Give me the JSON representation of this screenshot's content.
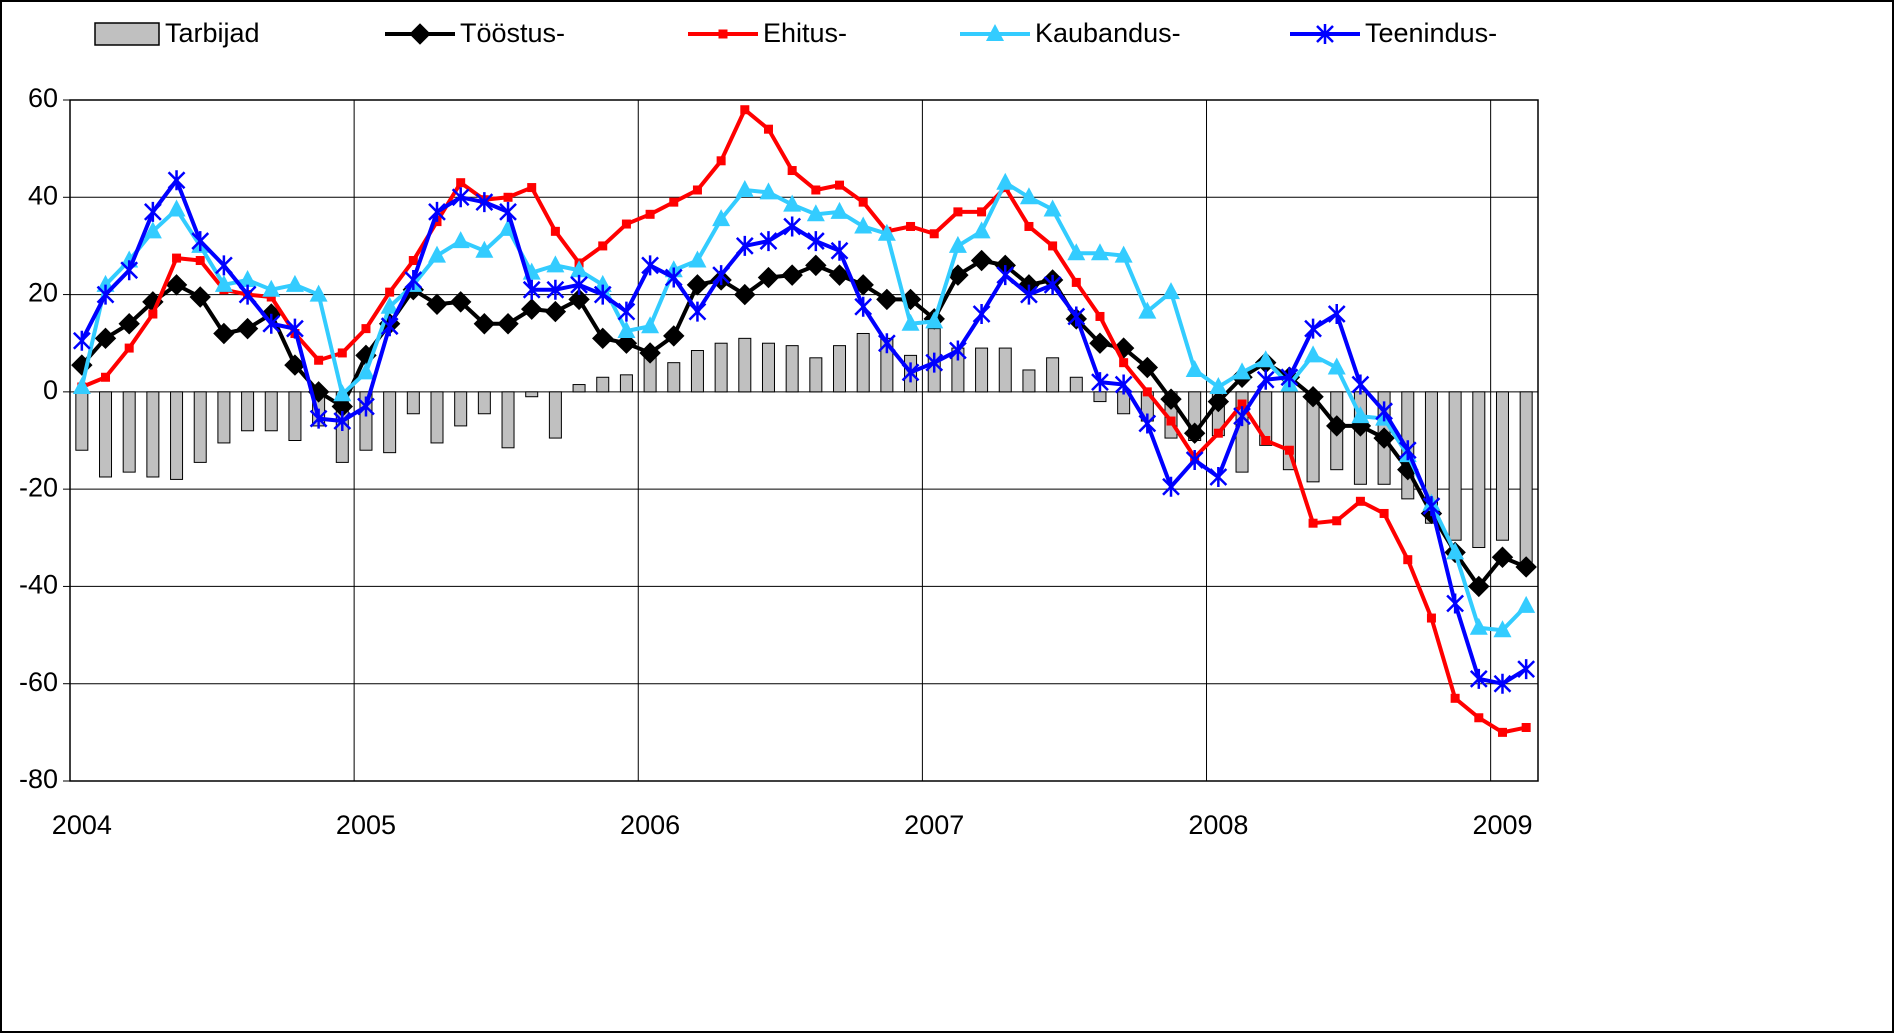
{
  "chart_data": {
    "type": "combo",
    "categories": [
      "2004",
      null,
      null,
      null,
      null,
      null,
      null,
      null,
      null,
      null,
      null,
      null,
      "2005",
      null,
      null,
      null,
      null,
      null,
      null,
      null,
      null,
      null,
      null,
      null,
      "2006",
      null,
      null,
      null,
      null,
      null,
      null,
      null,
      null,
      null,
      null,
      null,
      "2007",
      null,
      null,
      null,
      null,
      null,
      null,
      null,
      null,
      null,
      null,
      null,
      "2008",
      null,
      null,
      null,
      null,
      null,
      null,
      null,
      null,
      null,
      null,
      null,
      "2009",
      null
    ],
    "ylim": [
      -80,
      60
    ],
    "yticks": [
      -80,
      -60,
      -40,
      -20,
      0,
      20,
      40,
      60
    ],
    "grid": true,
    "series": [
      {
        "name": "Tarbijad",
        "type": "bar",
        "color": "#c0c0c0",
        "values": [
          -12,
          -17.5,
          -16.5,
          -17.5,
          -18,
          -14.5,
          -10.5,
          -8,
          -8,
          -10,
          -7,
          -14.5,
          -12,
          -12.5,
          -4.5,
          -10.5,
          -7,
          -4.5,
          -11.5,
          -1,
          -9.5,
          1.5,
          3,
          3.5,
          8,
          6,
          8.5,
          10,
          11,
          10,
          9.5,
          7,
          9.5,
          12,
          11,
          7.5,
          13,
          9,
          9,
          9,
          4.5,
          7,
          3,
          -2,
          -4.5,
          -6,
          -9.5,
          -10,
          -9,
          -16.5,
          -11,
          -16,
          -18.5,
          -16,
          -19,
          -19,
          -22,
          -27,
          -30.5,
          -32,
          -30.5,
          -36
        ]
      },
      {
        "name": "Tööstus-",
        "type": "line",
        "marker": "diamond",
        "color": "#000000",
        "values": [
          5.5,
          11,
          14,
          18.5,
          22,
          19.5,
          12,
          13,
          16,
          5.5,
          0,
          -3,
          7.5,
          14,
          21,
          18,
          18.5,
          14,
          14,
          17,
          16.5,
          19,
          11,
          10,
          8,
          11.5,
          22,
          23,
          20,
          23.5,
          24,
          26,
          24,
          22,
          19,
          19,
          15,
          24,
          27,
          26,
          22,
          23,
          15,
          10,
          9,
          5,
          -1.5,
          -8.5,
          -2,
          3,
          6,
          3,
          -1,
          -7,
          -7,
          -9.5,
          -16,
          -25,
          -33,
          -40,
          -34,
          -36
        ]
      },
      {
        "name": "Ehitus-",
        "type": "line",
        "marker": "square",
        "color": "#ff0000",
        "values": [
          1,
          3,
          9,
          16,
          27.5,
          27,
          21,
          20,
          19.5,
          12,
          6.5,
          8,
          13,
          20.5,
          27,
          35,
          43,
          39.5,
          40,
          42,
          33,
          26.5,
          30,
          34.5,
          36.5,
          39,
          41.5,
          47.5,
          58,
          54,
          45.5,
          41.5,
          42.5,
          39,
          33,
          34,
          32.5,
          37,
          37,
          42,
          34,
          30,
          22.5,
          15.5,
          6,
          0,
          -6,
          -13.5,
          -8.5,
          -2.5,
          -10,
          -12,
          -27,
          -26.5,
          -22.5,
          -25,
          -34.5,
          -46.5,
          -63,
          -67,
          -70,
          -69
        ]
      },
      {
        "name": "Kaubandus-",
        "type": "line",
        "marker": "triangle",
        "color": "#33ccff",
        "values": [
          1,
          22,
          27,
          33,
          37.5,
          30,
          22,
          23,
          21,
          22,
          20,
          -0.5,
          4,
          17.5,
          22,
          28,
          31,
          29,
          33.5,
          24.5,
          26,
          25,
          22,
          12.5,
          13.5,
          25,
          27,
          35.5,
          41.5,
          41,
          38.5,
          36.5,
          37,
          34,
          32.5,
          14,
          14.5,
          30,
          33,
          43,
          40,
          37.5,
          28.5,
          28.5,
          28,
          16.5,
          20.5,
          4.5,
          1,
          4,
          6.5,
          1.5,
          7.5,
          5,
          -5,
          -5.5,
          -13,
          -23,
          -33,
          -48.5,
          -49,
          -44
        ]
      },
      {
        "name": "Teenindus-",
        "type": "line",
        "marker": "asterisk",
        "color": "#0000ff",
        "values": [
          10.5,
          20,
          25,
          37,
          43.5,
          31,
          26,
          20,
          14,
          13,
          -5.5,
          -6,
          -3,
          13.5,
          23,
          37,
          40,
          39,
          37,
          21,
          21,
          22,
          20,
          16.5,
          26,
          23.5,
          16.5,
          24,
          30,
          31,
          34,
          31,
          29,
          17.5,
          10,
          4,
          6,
          8.5,
          16,
          24,
          20,
          22,
          15.5,
          2,
          1.5,
          -6.5,
          -19.5,
          -14,
          -17.5,
          -5,
          2.5,
          3,
          13,
          16,
          1.5,
          -4,
          -12,
          -23.5,
          -43.5,
          -59,
          -60,
          -57
        ]
      }
    ]
  }
}
